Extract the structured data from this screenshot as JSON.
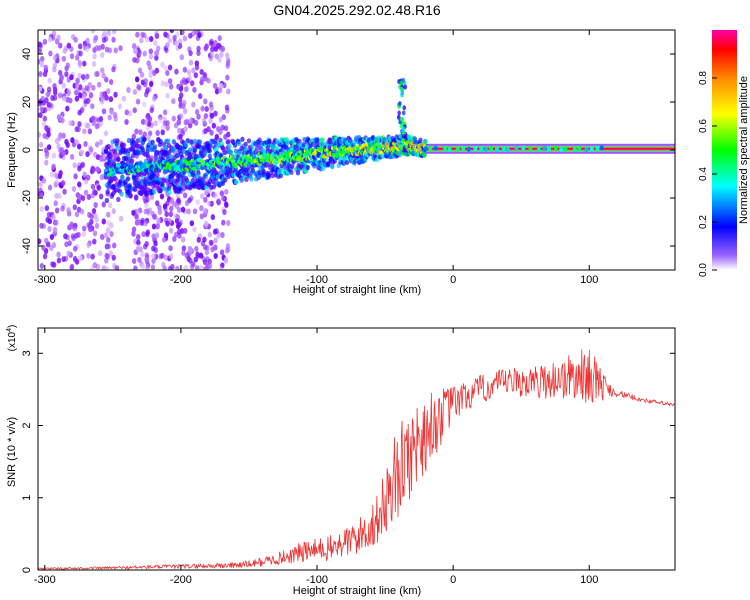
{
  "page": {
    "title": "GN04.2025.292.02.48.R16"
  },
  "chart_data": [
    {
      "id": "spectrogram",
      "type": "heatmap",
      "xlabel": "Height of straight line (km)",
      "ylabel": "Frequency (Hz)",
      "xlim": [
        -305,
        163
      ],
      "ylim": [
        -50,
        50
      ],
      "xticks": [
        -300,
        -200,
        -100,
        0,
        100
      ],
      "xtick_labels": [
        "-300",
        "-200",
        "-100",
        "0",
        "100"
      ],
      "yticks": [
        -40,
        -20,
        0,
        20,
        40
      ],
      "ytick_labels": [
        "-40",
        "-20",
        "0",
        "20",
        "40"
      ],
      "colorbar": {
        "label": "Normalized spectral amplitude",
        "range": [
          0,
          1
        ],
        "ticks": [
          0.0,
          0.2,
          0.4,
          0.6,
          0.8
        ],
        "tick_labels": [
          "0.0",
          "0.2",
          "0.4",
          "0.6",
          "0.8"
        ],
        "colors": [
          "#ffffff",
          "#7700ff",
          "#0000ff",
          "#00ffff",
          "#00ff00",
          "#ffff00",
          "#ff8800",
          "#ff0000",
          "#ff00aa"
        ]
      },
      "features": [
        {
          "name": "broadband-noise",
          "x_range": [
            -305,
            -165
          ],
          "freq_range": [
            -50,
            50
          ],
          "amplitude": 0.1
        },
        {
          "name": "main-trace",
          "points": [
            [
              -255,
              -9
            ],
            [
              -220,
              -7
            ],
            [
              -180,
              -6
            ],
            [
              -150,
              -4
            ],
            [
              -120,
              -3
            ],
            [
              -90,
              -1
            ],
            [
              -70,
              0
            ],
            [
              -50,
              1
            ],
            [
              -35,
              2
            ],
            [
              -20,
              0.5
            ],
            [
              0,
              0.5
            ],
            [
              50,
              0.5
            ],
            [
              100,
              0.5
            ],
            [
              163,
              0.5
            ]
          ],
          "amplitude_start": 0.3,
          "amplitude_end": 0.95
        },
        {
          "name": "upward-spike",
          "x_range": [
            -40,
            -35
          ],
          "freq_range": [
            0,
            30
          ],
          "amplitude": 0.35
        }
      ]
    },
    {
      "id": "snr",
      "type": "line",
      "xlabel": "Height of straight line (km)",
      "ylabel": "SNR (10 * v/v)",
      "y_multiplier": "(x10",
      "y_multiplier_exp": "4",
      "y_multiplier_close": ")",
      "xlim": [
        -305,
        163
      ],
      "ylim": [
        0,
        3.35
      ],
      "xticks": [
        -300,
        -200,
        -100,
        0,
        100
      ],
      "xtick_labels": [
        "-300",
        "-200",
        "-100",
        "0",
        "100"
      ],
      "yticks": [
        0,
        1,
        2,
        3
      ],
      "ytick_labels": [
        "0",
        "1",
        "2",
        "3"
      ],
      "color": "#ee3333",
      "series": [
        {
          "name": "SNR envelope",
          "x": [
            -305,
            -250,
            -200,
            -170,
            -150,
            -130,
            -110,
            -90,
            -70,
            -55,
            -45,
            -35,
            -25,
            -15,
            0,
            20,
            40,
            60,
            80,
            100,
            110,
            120,
            140,
            163
          ],
          "y": [
            0.02,
            0.03,
            0.05,
            0.06,
            0.08,
            0.15,
            0.25,
            0.3,
            0.45,
            0.7,
            1.2,
            1.5,
            1.8,
            2.0,
            2.3,
            2.5,
            2.6,
            2.6,
            2.65,
            2.7,
            2.55,
            2.45,
            2.35,
            2.28
          ],
          "noise": [
            0.01,
            0.02,
            0.03,
            0.04,
            0.05,
            0.08,
            0.15,
            0.18,
            0.25,
            0.35,
            0.6,
            0.65,
            0.6,
            0.5,
            0.25,
            0.2,
            0.2,
            0.22,
            0.3,
            0.4,
            0.2,
            0.05,
            0.03,
            0.03
          ]
        }
      ]
    }
  ]
}
